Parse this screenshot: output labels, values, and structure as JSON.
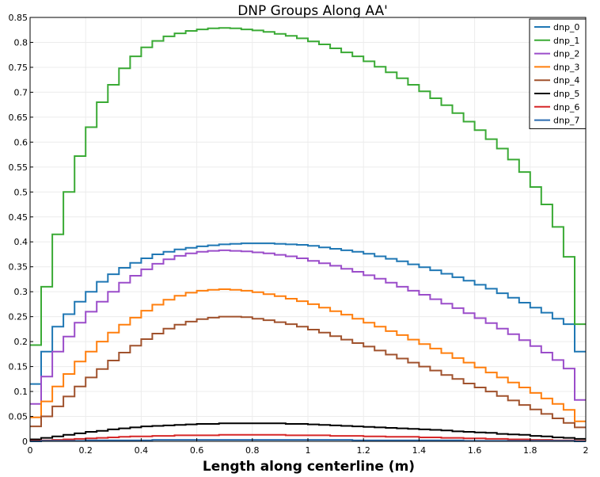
{
  "chart_data": {
    "type": "line",
    "title": "DNP Groups Along AA'",
    "xlabel": "Length along centerline (m)",
    "ylabel": "",
    "xlim": [
      0,
      2
    ],
    "ylim": [
      0,
      0.85
    ],
    "xticks": [
      "0",
      "0.2",
      "0.4",
      "0.6",
      "0.8",
      "1",
      "1.2",
      "1.4",
      "1.6",
      "1.8",
      "2"
    ],
    "yticks": [
      "0",
      "0.05",
      "0.1",
      "0.15",
      "0.2",
      "0.25",
      "0.3",
      "0.35",
      "0.4",
      "0.45",
      "0.5",
      "0.55",
      "0.6",
      "0.65",
      "0.7",
      "0.75",
      "0.8",
      "0.85"
    ],
    "grid": true,
    "legend_position": "top-right",
    "step": true,
    "x": [
      0.0,
      0.04,
      0.08,
      0.12,
      0.16,
      0.2,
      0.24,
      0.28,
      0.32,
      0.36,
      0.4,
      0.44,
      0.48,
      0.52,
      0.56,
      0.6,
      0.64,
      0.68,
      0.72,
      0.76,
      0.8,
      0.84,
      0.88,
      0.92,
      0.96,
      1.0,
      1.04,
      1.08,
      1.12,
      1.16,
      1.2,
      1.24,
      1.28,
      1.32,
      1.36,
      1.4,
      1.44,
      1.48,
      1.52,
      1.56,
      1.6,
      1.64,
      1.68,
      1.72,
      1.76,
      1.8,
      1.84,
      1.88,
      1.92,
      1.96,
      2.0
    ],
    "series": [
      {
        "name": "dnp_0",
        "color": "#1f77b4",
        "values": [
          0.115,
          0.18,
          0.23,
          0.255,
          0.28,
          0.3,
          0.32,
          0.335,
          0.348,
          0.358,
          0.367,
          0.375,
          0.38,
          0.385,
          0.388,
          0.391,
          0.393,
          0.395,
          0.396,
          0.397,
          0.397,
          0.397,
          0.396,
          0.395,
          0.394,
          0.392,
          0.389,
          0.386,
          0.383,
          0.38,
          0.376,
          0.371,
          0.366,
          0.361,
          0.355,
          0.349,
          0.343,
          0.336,
          0.329,
          0.322,
          0.314,
          0.306,
          0.297,
          0.288,
          0.278,
          0.268,
          0.258,
          0.246,
          0.235,
          0.18,
          0.18
        ]
      },
      {
        "name": "dnp_1",
        "color": "#3aaa35",
        "values": [
          0.193,
          0.31,
          0.415,
          0.5,
          0.572,
          0.63,
          0.68,
          0.715,
          0.748,
          0.772,
          0.79,
          0.803,
          0.812,
          0.818,
          0.823,
          0.826,
          0.828,
          0.829,
          0.828,
          0.826,
          0.824,
          0.821,
          0.817,
          0.813,
          0.808,
          0.802,
          0.796,
          0.788,
          0.78,
          0.772,
          0.762,
          0.751,
          0.74,
          0.728,
          0.715,
          0.702,
          0.688,
          0.674,
          0.658,
          0.641,
          0.624,
          0.606,
          0.587,
          0.565,
          0.54,
          0.51,
          0.475,
          0.43,
          0.37,
          0.235,
          0.235
        ]
      },
      {
        "name": "dnp_2",
        "color": "#9b4dca",
        "values": [
          0.075,
          0.13,
          0.18,
          0.21,
          0.238,
          0.26,
          0.28,
          0.3,
          0.318,
          0.332,
          0.345,
          0.356,
          0.365,
          0.372,
          0.377,
          0.38,
          0.382,
          0.383,
          0.382,
          0.381,
          0.379,
          0.377,
          0.374,
          0.371,
          0.367,
          0.362,
          0.357,
          0.352,
          0.346,
          0.34,
          0.333,
          0.326,
          0.318,
          0.31,
          0.302,
          0.294,
          0.285,
          0.276,
          0.267,
          0.257,
          0.247,
          0.237,
          0.226,
          0.215,
          0.203,
          0.191,
          0.178,
          0.163,
          0.146,
          0.083,
          0.083
        ]
      },
      {
        "name": "dnp_3",
        "color": "#ff7f0e",
        "values": [
          0.048,
          0.08,
          0.11,
          0.135,
          0.16,
          0.18,
          0.2,
          0.218,
          0.234,
          0.248,
          0.262,
          0.274,
          0.284,
          0.292,
          0.298,
          0.302,
          0.304,
          0.305,
          0.304,
          0.302,
          0.299,
          0.295,
          0.291,
          0.286,
          0.281,
          0.275,
          0.268,
          0.261,
          0.254,
          0.246,
          0.238,
          0.23,
          0.221,
          0.213,
          0.204,
          0.195,
          0.186,
          0.177,
          0.167,
          0.158,
          0.148,
          0.138,
          0.128,
          0.118,
          0.108,
          0.097,
          0.086,
          0.075,
          0.063,
          0.04,
          0.04
        ]
      },
      {
        "name": "dnp_4",
        "color": "#a0522d",
        "values": [
          0.03,
          0.05,
          0.07,
          0.09,
          0.11,
          0.128,
          0.145,
          0.162,
          0.178,
          0.192,
          0.205,
          0.216,
          0.226,
          0.234,
          0.24,
          0.245,
          0.248,
          0.25,
          0.25,
          0.249,
          0.246,
          0.243,
          0.239,
          0.235,
          0.23,
          0.224,
          0.218,
          0.211,
          0.204,
          0.197,
          0.19,
          0.182,
          0.174,
          0.166,
          0.158,
          0.15,
          0.142,
          0.133,
          0.125,
          0.116,
          0.108,
          0.1,
          0.091,
          0.082,
          0.073,
          0.064,
          0.055,
          0.046,
          0.037,
          0.028,
          0.028
        ]
      },
      {
        "name": "dnp_5",
        "color": "#000000",
        "values": [
          0.004,
          0.007,
          0.01,
          0.013,
          0.016,
          0.019,
          0.021,
          0.024,
          0.026,
          0.028,
          0.03,
          0.031,
          0.032,
          0.033,
          0.034,
          0.035,
          0.035,
          0.036,
          0.036,
          0.036,
          0.036,
          0.036,
          0.036,
          0.035,
          0.035,
          0.034,
          0.033,
          0.032,
          0.031,
          0.03,
          0.029,
          0.028,
          0.027,
          0.026,
          0.025,
          0.024,
          0.023,
          0.022,
          0.02,
          0.019,
          0.018,
          0.017,
          0.015,
          0.014,
          0.013,
          0.011,
          0.01,
          0.008,
          0.007,
          0.005,
          0.005
        ]
      },
      {
        "name": "dnp_6",
        "color": "#d62728",
        "values": [
          0.001,
          0.002,
          0.003,
          0.004,
          0.005,
          0.006,
          0.007,
          0.008,
          0.009,
          0.01,
          0.01,
          0.011,
          0.011,
          0.012,
          0.012,
          0.012,
          0.012,
          0.013,
          0.013,
          0.013,
          0.013,
          0.013,
          0.013,
          0.012,
          0.012,
          0.012,
          0.012,
          0.011,
          0.011,
          0.011,
          0.01,
          0.01,
          0.009,
          0.009,
          0.009,
          0.008,
          0.008,
          0.007,
          0.007,
          0.006,
          0.006,
          0.005,
          0.005,
          0.004,
          0.004,
          0.003,
          0.003,
          0.002,
          0.002,
          0.001,
          0.001
        ]
      },
      {
        "name": "dnp_7",
        "color": "#2b6cb0",
        "values": [
          0.0,
          0.001,
          0.001,
          0.001,
          0.001,
          0.002,
          0.002,
          0.002,
          0.002,
          0.002,
          0.002,
          0.003,
          0.003,
          0.003,
          0.003,
          0.003,
          0.003,
          0.003,
          0.003,
          0.003,
          0.003,
          0.003,
          0.003,
          0.003,
          0.003,
          0.003,
          0.003,
          0.003,
          0.003,
          0.002,
          0.002,
          0.002,
          0.002,
          0.002,
          0.002,
          0.002,
          0.002,
          0.002,
          0.002,
          0.001,
          0.001,
          0.001,
          0.001,
          0.001,
          0.001,
          0.001,
          0.001,
          0.001,
          0.001,
          0.0,
          0.0
        ]
      }
    ]
  }
}
